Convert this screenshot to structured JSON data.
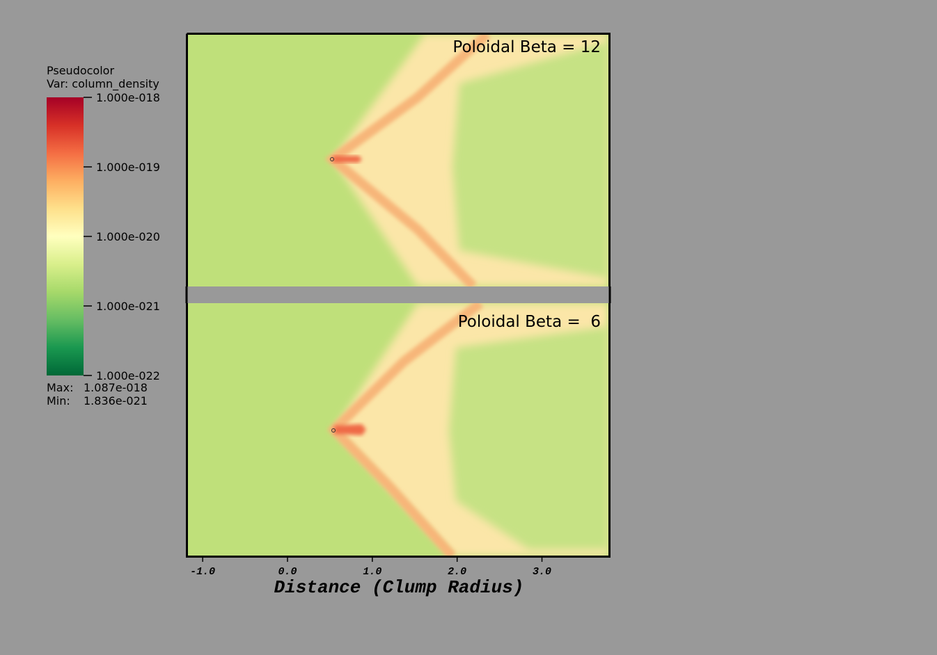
{
  "chart_data": {
    "type": "pseudocolor",
    "legend_title": "Pseudocolor",
    "legend_var": "Var: column_density",
    "colorbar": {
      "log": true,
      "colors": [
        "#a50026",
        "#d73027",
        "#f46d43",
        "#fdae61",
        "#fee08b",
        "#ffffbf",
        "#d9ef8b",
        "#a6d96a",
        "#66bd63",
        "#1a9850",
        "#006837"
      ],
      "ylim": [
        1e-22,
        1e-18
      ],
      "yticks": [
        {
          "value": 1e-18,
          "label": "1.000e-018"
        },
        {
          "value": 1e-19,
          "label": "1.000e-019"
        },
        {
          "value": 1e-20,
          "label": "1.000e-020"
        },
        {
          "value": 1e-21,
          "label": "1.000e-021"
        },
        {
          "value": 1e-22,
          "label": "1.000e-022"
        }
      ]
    },
    "extrema": {
      "names": [
        "Max:",
        "Min:"
      ],
      "values": [
        1.087e-18,
        1.836e-21
      ],
      "value_labels": [
        "1.087e-018",
        "1.836e-021"
      ]
    },
    "panels": [
      {
        "title": "Poloidal Beta = 12"
      },
      {
        "title": "Poloidal Beta =  6"
      }
    ],
    "xlabel": "Distance (Clump Radius)",
    "xlim": [
      -1.19,
      3.8
    ],
    "xticks": [
      {
        "value": -1,
        "label": "-1.0"
      },
      {
        "value": 0,
        "label": "0.0"
      },
      {
        "value": 1,
        "label": "1.0"
      },
      {
        "value": 2,
        "label": "2.0"
      },
      {
        "value": 3,
        "label": "3.0"
      }
    ]
  }
}
